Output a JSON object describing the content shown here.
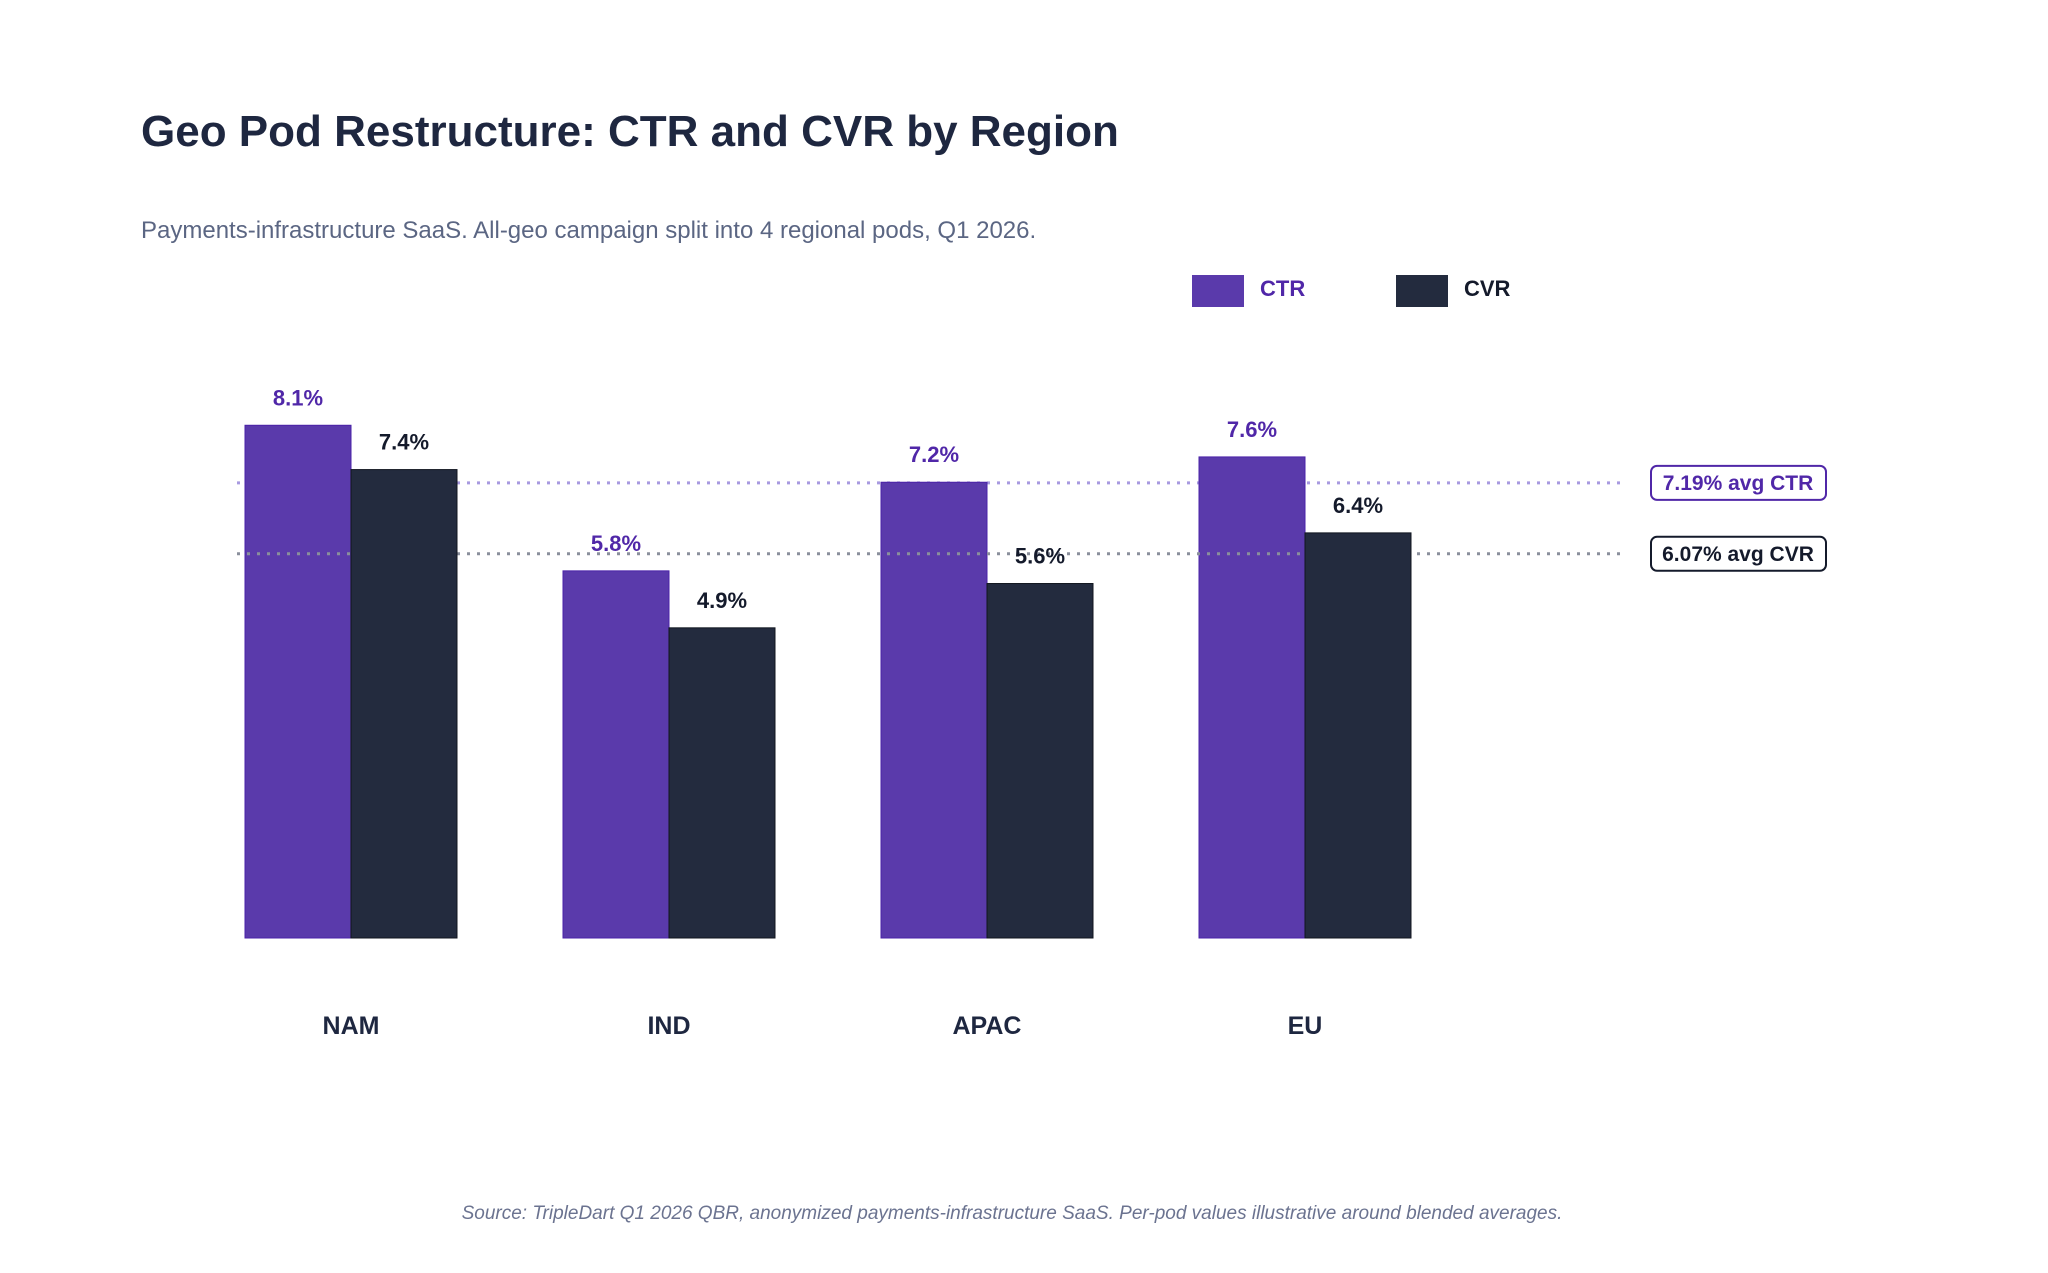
{
  "colors": {
    "ctr": "#5a3aab",
    "ctr_text": "#5027a8",
    "cvr": "#232b3e",
    "cvr_text": "#141a2b",
    "ctr_avg_line": "#a89ae0",
    "cvr_avg_line": "#8a8f9c"
  },
  "chart_data": {
    "type": "bar",
    "title": "Geo Pod Restructure: CTR and CVR by Region",
    "subtitle": "Payments-infrastructure SaaS. All-geo campaign split into 4 regional pods, Q1 2026.",
    "categories": [
      "NAM",
      "IND",
      "APAC",
      "EU"
    ],
    "series": [
      {
        "name": "CTR",
        "values": [
          8.1,
          5.8,
          7.2,
          7.6
        ],
        "labels": [
          "8.1%",
          "5.8%",
          "7.2%",
          "7.6%"
        ]
      },
      {
        "name": "CVR",
        "values": [
          7.4,
          4.9,
          5.6,
          6.4
        ],
        "labels": [
          "7.4%",
          "4.9%",
          "5.6%",
          "6.4%"
        ]
      }
    ],
    "reference_lines": [
      {
        "series": "CTR",
        "value": 7.19,
        "label": "7.19% avg CTR",
        "style": "dotted"
      },
      {
        "series": "CVR",
        "value": 6.07,
        "label": "6.07% avg CVR",
        "style": "dotted"
      }
    ],
    "xlabel": "",
    "ylabel": "",
    "ylim": [
      0,
      9
    ],
    "grid": false,
    "y_axis_visible": false,
    "legend": {
      "position": "top-right",
      "entries": [
        "CTR",
        "CVR"
      ]
    },
    "source": "Source: TripleDart Q1 2026 QBR, anonymized payments-infrastructure SaaS. Per-pod values illustrative around blended averages."
  }
}
